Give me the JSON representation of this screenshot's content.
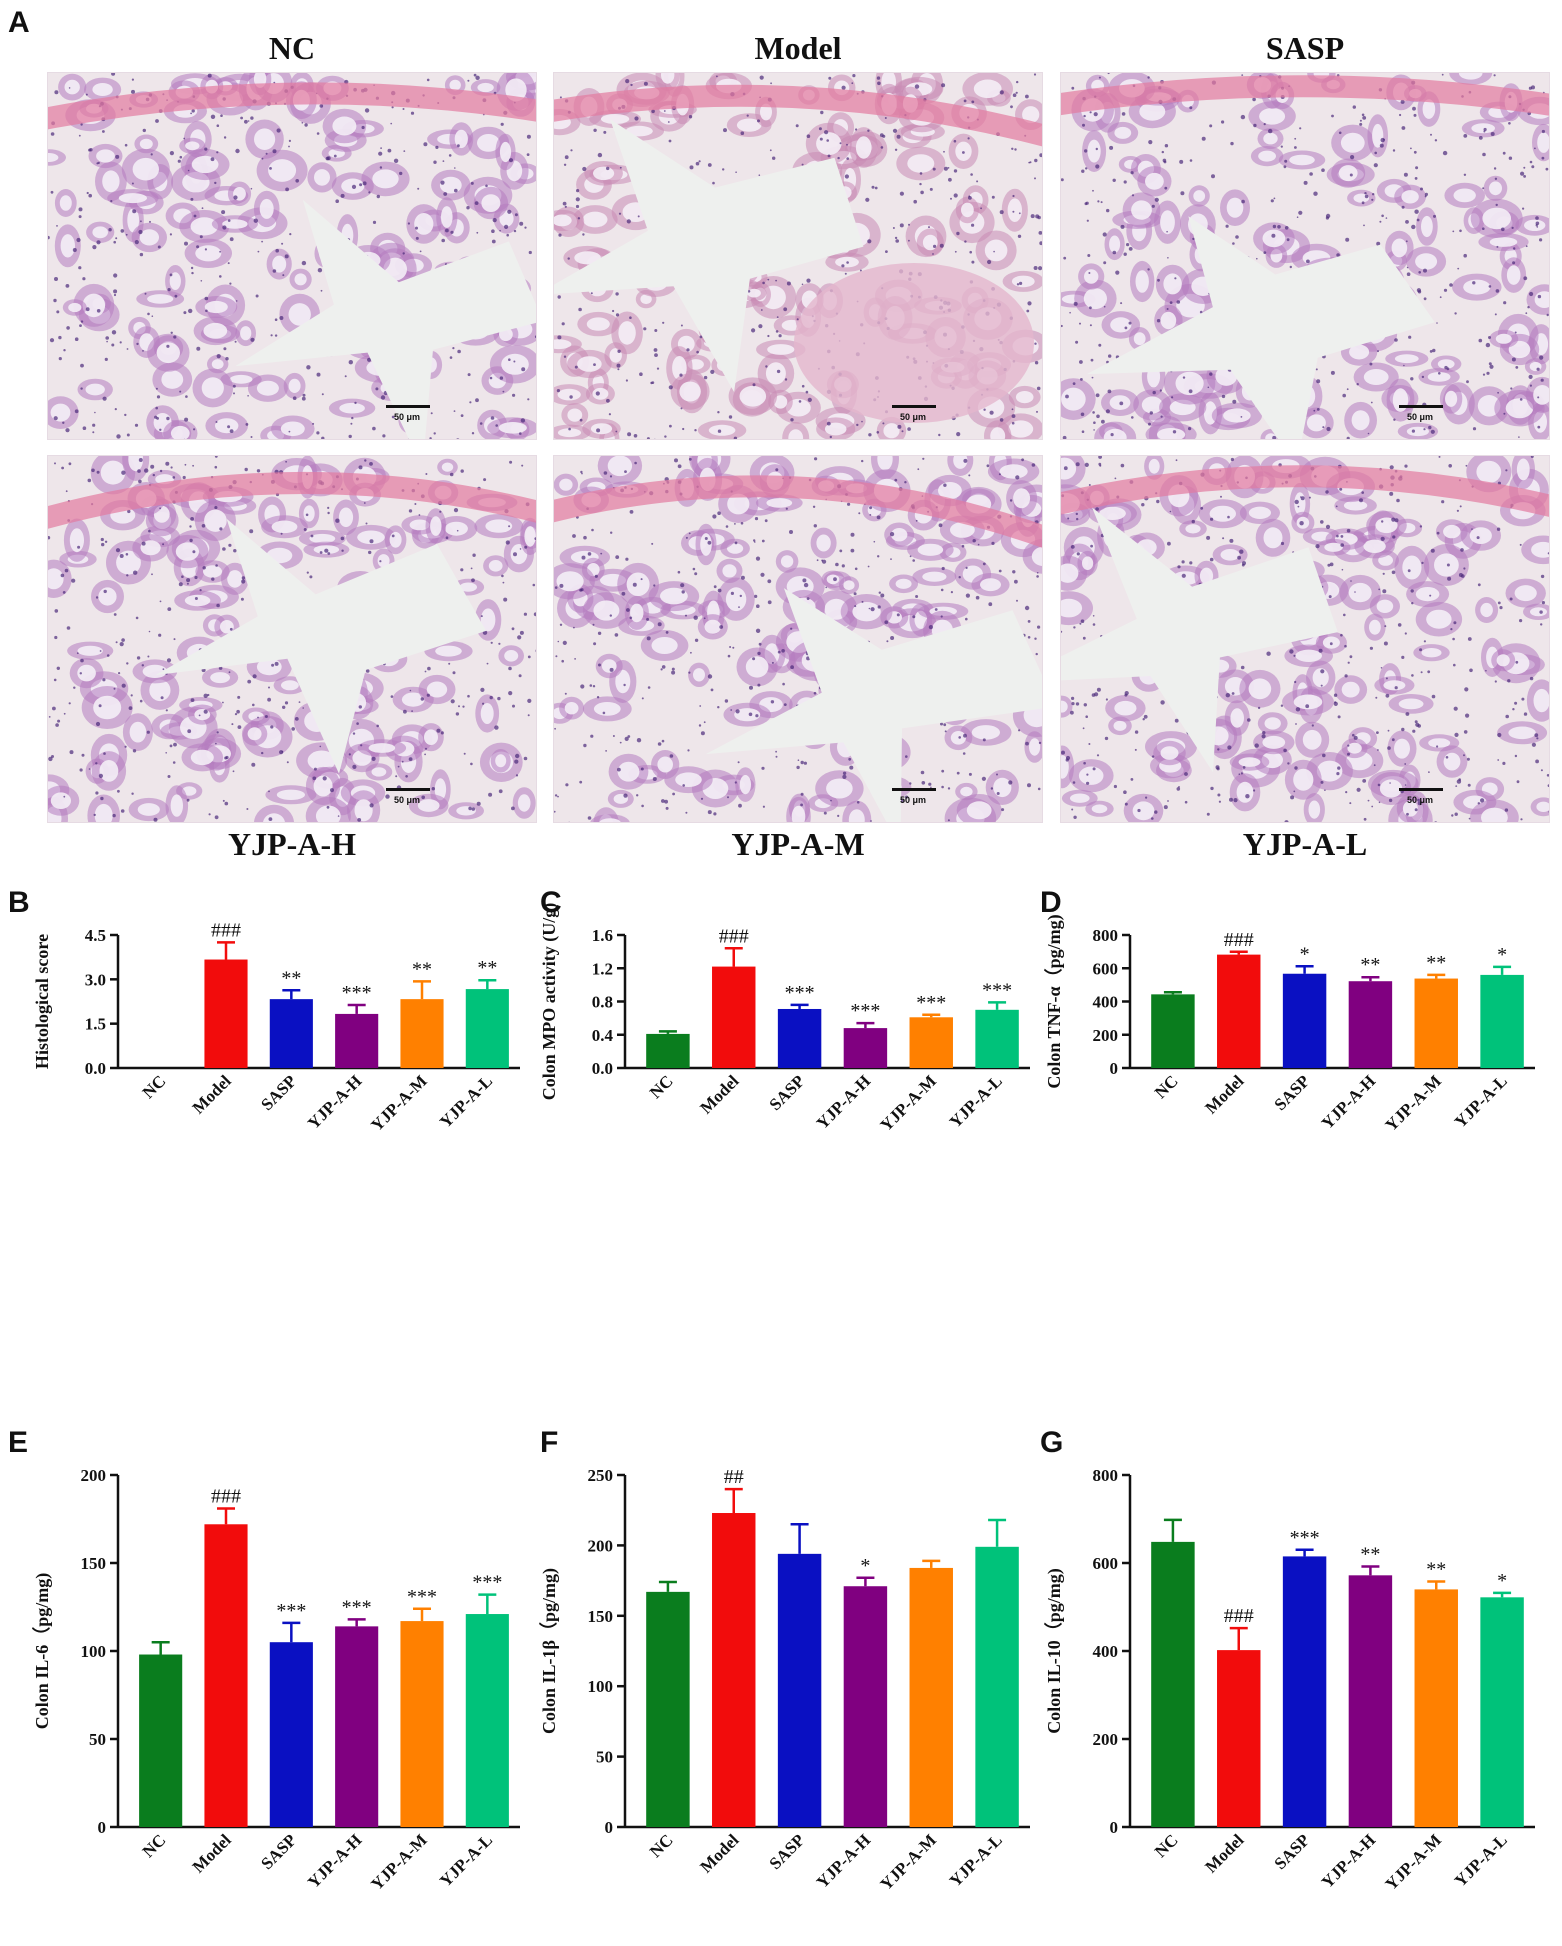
{
  "panel_a": {
    "letter": "A",
    "images": [
      {
        "label": "NC",
        "scale_bar": "50 μm",
        "label_pos": "top",
        "tissue": "normal"
      },
      {
        "label": "Model",
        "scale_bar": "50 μm",
        "label_pos": "top",
        "tissue": "damaged"
      },
      {
        "label": "SASP",
        "scale_bar": "50 μm",
        "label_pos": "top",
        "tissue": "mild"
      },
      {
        "label": "YJP-A-H",
        "scale_bar": "50 μm",
        "label_pos": "bottom",
        "tissue": "mild"
      },
      {
        "label": "YJP-A-M",
        "scale_bar": "50 μm",
        "label_pos": "bottom",
        "tissue": "mild"
      },
      {
        "label": "YJP-A-L",
        "scale_bar": "50 μm",
        "label_pos": "bottom",
        "tissue": "mild"
      }
    ]
  },
  "colors": {
    "NC": "#0a7d1e",
    "Model": "#f20c0c",
    "SASP": "#0a10c2",
    "YJP-A-H": "#800080",
    "YJP-A-M": "#ff8000",
    "YJP-A-L": "#00c27a"
  },
  "chart_data": [
    {
      "panel": "B",
      "type": "bar",
      "categories": [
        "NC",
        "Model",
        "SASP",
        "YJP-A-H",
        "YJP-A-M",
        "YJP-A-L"
      ],
      "values": [
        0,
        3.67,
        2.33,
        1.83,
        2.33,
        2.67
      ],
      "errors": [
        0,
        0.58,
        0.3,
        0.3,
        0.6,
        0.3
      ],
      "significance": [
        "",
        "###",
        "**",
        "***",
        "**",
        "**"
      ],
      "ylabel": "Histological score",
      "ylim": [
        0,
        4.5
      ],
      "yticks": [
        "0.0",
        "1.5",
        "3.0",
        "4.5"
      ],
      "ytick_values": [
        0,
        1.5,
        3.0,
        4.5
      ]
    },
    {
      "panel": "C",
      "type": "bar",
      "categories": [
        "NC",
        "Model",
        "SASP",
        "YJP-A-H",
        "YJP-A-M",
        "YJP-A-L"
      ],
      "values": [
        0.41,
        1.22,
        0.71,
        0.48,
        0.61,
        0.7
      ],
      "errors": [
        0.03,
        0.22,
        0.05,
        0.06,
        0.03,
        0.09
      ],
      "significance": [
        "",
        "###",
        "***",
        "***",
        "***",
        "***"
      ],
      "ylabel": "Colon MPO activity (U/g)",
      "ylim": [
        0,
        1.6
      ],
      "yticks": [
        "0.0",
        "0.4",
        "0.8",
        "1.2",
        "1.6"
      ],
      "ytick_values": [
        0,
        0.4,
        0.8,
        1.2,
        1.6
      ]
    },
    {
      "panel": "D",
      "type": "bar",
      "categories": [
        "NC",
        "Model",
        "SASP",
        "YJP-A-H",
        "YJP-A-M",
        "YJP-A-L"
      ],
      "values": [
        443,
        682,
        567,
        522,
        538,
        560
      ],
      "errors": [
        13,
        17,
        45,
        24,
        22,
        48
      ],
      "significance": [
        "",
        "###",
        "*",
        "**",
        "**",
        "*"
      ],
      "ylabel": "Colon TNF-α（pg/mg)",
      "ylim": [
        0,
        800
      ],
      "yticks": [
        "0",
        "200",
        "400",
        "600",
        "800"
      ],
      "ytick_values": [
        0,
        200,
        400,
        600,
        800
      ]
    },
    {
      "panel": "E",
      "type": "bar",
      "categories": [
        "NC",
        "Model",
        "SASP",
        "YJP-A-H",
        "YJP-A-M",
        "YJP-A-L"
      ],
      "values": [
        98,
        172,
        105,
        114,
        117,
        121
      ],
      "errors": [
        7,
        9,
        11,
        4,
        7,
        11
      ],
      "significance": [
        "",
        "###",
        "***",
        "***",
        "***",
        "***"
      ],
      "ylabel": "Colon IL-6（pg/mg)",
      "ylim": [
        0,
        200
      ],
      "yticks": [
        "0",
        "50",
        "100",
        "150",
        "200"
      ],
      "ytick_values": [
        0,
        50,
        100,
        150,
        200
      ]
    },
    {
      "panel": "F",
      "type": "bar",
      "categories": [
        "NC",
        "Model",
        "SASP",
        "YJP-A-H",
        "YJP-A-M",
        "YJP-A-L"
      ],
      "values": [
        167,
        223,
        194,
        171,
        184,
        199
      ],
      "errors": [
        7,
        17,
        21,
        6,
        5,
        19
      ],
      "significance": [
        "",
        "##",
        "",
        "*",
        "",
        ""
      ],
      "ylabel": "Colon IL-1β（pg/mg)",
      "ylim": [
        0,
        250
      ],
      "yticks": [
        "0",
        "50",
        "100",
        "150",
        "200",
        "250"
      ],
      "ytick_values": [
        0,
        50,
        100,
        150,
        200,
        250
      ]
    },
    {
      "panel": "G",
      "type": "bar",
      "categories": [
        "NC",
        "Model",
        "SASP",
        "YJP-A-H",
        "YJP-A-M",
        "YJP-A-L"
      ],
      "values": [
        648,
        402,
        615,
        572,
        540,
        522
      ],
      "errors": [
        50,
        50,
        15,
        20,
        18,
        10
      ],
      "significance": [
        "",
        "###",
        "***",
        "**",
        "**",
        "*"
      ],
      "ylabel": "Colon IL-10（pg/mg)",
      "ylim": [
        0,
        800
      ],
      "yticks": [
        "0",
        "200",
        "400",
        "600",
        "800"
      ],
      "ytick_values": [
        0,
        200,
        400,
        600,
        800
      ]
    }
  ]
}
